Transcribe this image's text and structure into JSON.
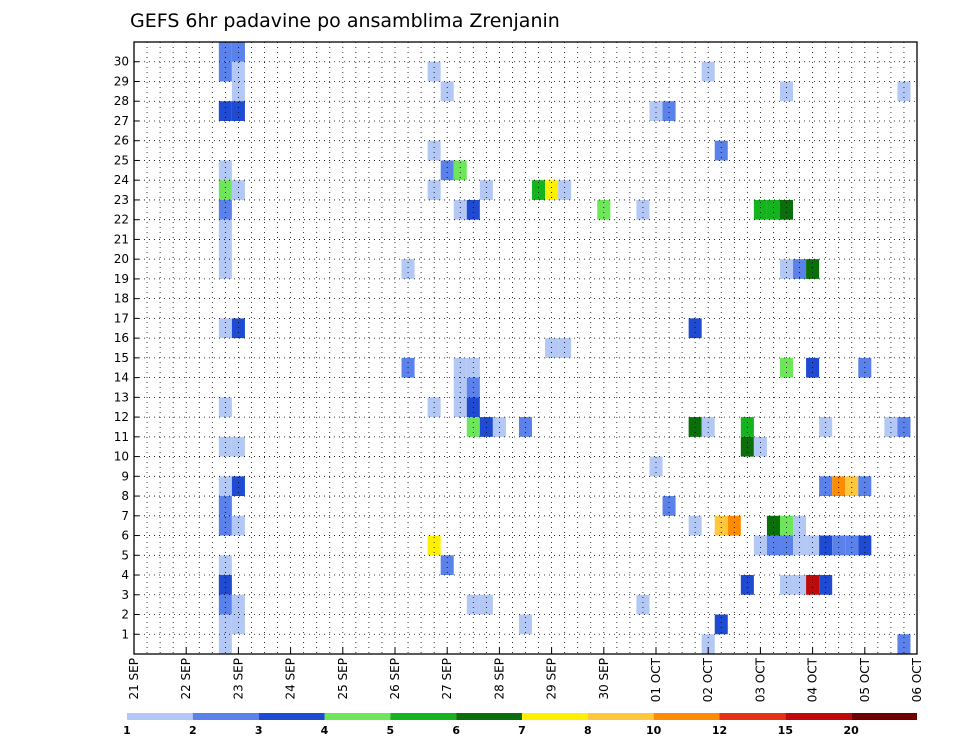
{
  "chart_data": {
    "type": "heatmap",
    "title": "GEFS 6hr padavine po ansamblima Zrenjanin",
    "xlabel": "",
    "ylabel": "",
    "x_tick_labels": [
      "21 SEP",
      "22 SEP",
      "23 SEP",
      "24 SEP",
      "25 SEP",
      "26 SEP",
      "27 SEP",
      "28 SEP",
      "29 SEP",
      "30 SEP",
      "01 OCT",
      "02 OCT",
      "03 OCT",
      "04 OCT",
      "05 OCT",
      "06 OCT"
    ],
    "x_range_steps": [
      0,
      60
    ],
    "x_step_hours": 6,
    "y_members": [
      1,
      30
    ],
    "grid": true,
    "legend": {
      "placement": "bottom",
      "levels": [
        "1",
        "2",
        "3",
        "4",
        "5",
        "6",
        "7",
        "8",
        "10",
        "12",
        "15",
        "20"
      ],
      "colors": [
        "#b4c8f5",
        "#5b82eb",
        "#1e4bd2",
        "#6ee65a",
        "#14b41e",
        "#0a6e0a",
        "#fff000",
        "#ffc83c",
        "#ff8c00",
        "#e63214",
        "#be0a0a",
        "#6e0000"
      ]
    },
    "cells": [
      {
        "step": 7,
        "member": 30,
        "value": 2.5
      },
      {
        "step": 8,
        "member": 30,
        "value": 2.5
      },
      {
        "step": 7,
        "member": 29,
        "value": 2.5
      },
      {
        "step": 8,
        "member": 29,
        "value": 1.5
      },
      {
        "step": 8,
        "member": 28,
        "value": 1.5
      },
      {
        "step": 7,
        "member": 27,
        "value": 3.5
      },
      {
        "step": 8,
        "member": 27,
        "value": 3.5
      },
      {
        "step": 7,
        "member": 24,
        "value": 1.5
      },
      {
        "step": 7,
        "member": 23,
        "value": 4.5
      },
      {
        "step": 8,
        "member": 23,
        "value": 1.5
      },
      {
        "step": 7,
        "member": 22,
        "value": 2.5
      },
      {
        "step": 7,
        "member": 21,
        "value": 1.5
      },
      {
        "step": 7,
        "member": 20,
        "value": 1.5
      },
      {
        "step": 7,
        "member": 19,
        "value": 1.5
      },
      {
        "step": 7,
        "member": 16,
        "value": 1.5
      },
      {
        "step": 8,
        "member": 16,
        "value": 3.5
      },
      {
        "step": 7,
        "member": 12,
        "value": 1.5
      },
      {
        "step": 7,
        "member": 10,
        "value": 1.5
      },
      {
        "step": 8,
        "member": 10,
        "value": 1.5
      },
      {
        "step": 7,
        "member": 8,
        "value": 1.5
      },
      {
        "step": 8,
        "member": 8,
        "value": 3.5
      },
      {
        "step": 7,
        "member": 7,
        "value": 2.5
      },
      {
        "step": 7,
        "member": 6,
        "value": 2.5
      },
      {
        "step": 8,
        "member": 6,
        "value": 1.5
      },
      {
        "step": 7,
        "member": 4,
        "value": 1.5
      },
      {
        "step": 7,
        "member": 3,
        "value": 3.5
      },
      {
        "step": 7,
        "member": 2,
        "value": 2.5
      },
      {
        "step": 8,
        "member": 2,
        "value": 1.5
      },
      {
        "step": 7,
        "member": 1,
        "value": 1.5
      },
      {
        "step": 8,
        "member": 1,
        "value": 1.5
      },
      {
        "step": 7,
        "member": 0,
        "value": 1.5
      },
      {
        "step": 23,
        "member": 29,
        "value": 1.5
      },
      {
        "step": 24,
        "member": 28,
        "value": 1.5
      },
      {
        "step": 23,
        "member": 25,
        "value": 1.5
      },
      {
        "step": 24,
        "member": 24,
        "value": 2.5
      },
      {
        "step": 25,
        "member": 24,
        "value": 4.5
      },
      {
        "step": 23,
        "member": 23,
        "value": 1.5
      },
      {
        "step": 27,
        "member": 23,
        "value": 1.5
      },
      {
        "step": 25,
        "member": 22,
        "value": 1.5
      },
      {
        "step": 26,
        "member": 22,
        "value": 3.5
      },
      {
        "step": 21,
        "member": 19,
        "value": 1.5
      },
      {
        "step": 21,
        "member": 14,
        "value": 2.5
      },
      {
        "step": 25,
        "member": 14,
        "value": 1.5
      },
      {
        "step": 26,
        "member": 14,
        "value": 1.5
      },
      {
        "step": 25,
        "member": 13,
        "value": 1.5
      },
      {
        "step": 26,
        "member": 13,
        "value": 2.5
      },
      {
        "step": 23,
        "member": 12,
        "value": 1.5
      },
      {
        "step": 25,
        "member": 12,
        "value": 1.5
      },
      {
        "step": 26,
        "member": 12,
        "value": 3.5
      },
      {
        "step": 26,
        "member": 11,
        "value": 4.5
      },
      {
        "step": 27,
        "member": 11,
        "value": 3.5
      },
      {
        "step": 28,
        "member": 11,
        "value": 1.5
      },
      {
        "step": 30,
        "member": 11,
        "value": 2.5
      },
      {
        "step": 23,
        "member": 5,
        "value": 7.5
      },
      {
        "step": 24,
        "member": 4,
        "value": 2.5
      },
      {
        "step": 26,
        "member": 2,
        "value": 1.5
      },
      {
        "step": 27,
        "member": 2,
        "value": 1.5
      },
      {
        "step": 30,
        "member": 1,
        "value": 1.5
      },
      {
        "step": 31,
        "member": 23,
        "value": 5.5
      },
      {
        "step": 32,
        "member": 23,
        "value": 7.5
      },
      {
        "step": 33,
        "member": 23,
        "value": 1.5
      },
      {
        "step": 36,
        "member": 22,
        "value": 4.5
      },
      {
        "step": 39,
        "member": 22,
        "value": 1.5
      },
      {
        "step": 32,
        "member": 15,
        "value": 1.5
      },
      {
        "step": 33,
        "member": 15,
        "value": 1.5
      },
      {
        "step": 39,
        "member": 2,
        "value": 1.5
      },
      {
        "step": 44,
        "member": 29,
        "value": 1.5
      },
      {
        "step": 40,
        "member": 27,
        "value": 1.5
      },
      {
        "step": 41,
        "member": 27,
        "value": 2.5
      },
      {
        "step": 45,
        "member": 25,
        "value": 2.5
      },
      {
        "step": 43,
        "member": 16,
        "value": 3.5
      },
      {
        "step": 43,
        "member": 11,
        "value": 6.5
      },
      {
        "step": 44,
        "member": 11,
        "value": 1.5
      },
      {
        "step": 40,
        "member": 9,
        "value": 1.5
      },
      {
        "step": 41,
        "member": 7,
        "value": 2.5
      },
      {
        "step": 43,
        "member": 6,
        "value": 1.5
      },
      {
        "step": 45,
        "member": 6,
        "value": 9
      },
      {
        "step": 46,
        "member": 6,
        "value": 11
      },
      {
        "step": 45,
        "member": 1,
        "value": 3.5
      },
      {
        "step": 44,
        "member": 0,
        "value": 1.5
      },
      {
        "step": 47,
        "member": 11,
        "value": 5.5
      },
      {
        "step": 47,
        "member": 10,
        "value": 6.5
      },
      {
        "step": 48,
        "member": 10,
        "value": 1.5
      },
      {
        "step": 47,
        "member": 3,
        "value": 3.5
      },
      {
        "step": 48,
        "member": 22,
        "value": 5.5
      },
      {
        "step": 49,
        "member": 22,
        "value": 5.5
      },
      {
        "step": 50,
        "member": 22,
        "value": 6.5
      },
      {
        "step": 50,
        "member": 28,
        "value": 1.5
      },
      {
        "step": 50,
        "member": 19,
        "value": 1.5
      },
      {
        "step": 51,
        "member": 19,
        "value": 2.5
      },
      {
        "step": 52,
        "member": 19,
        "value": 6.5
      },
      {
        "step": 50,
        "member": 14,
        "value": 4.5
      },
      {
        "step": 52,
        "member": 14,
        "value": 3.5
      },
      {
        "step": 49,
        "member": 6,
        "value": 6.5
      },
      {
        "step": 50,
        "member": 6,
        "value": 4.5
      },
      {
        "step": 51,
        "member": 6,
        "value": 1.5
      },
      {
        "step": 48,
        "member": 5,
        "value": 1.5
      },
      {
        "step": 49,
        "member": 5,
        "value": 2.5
      },
      {
        "step": 50,
        "member": 5,
        "value": 2.5
      },
      {
        "step": 51,
        "member": 5,
        "value": 1.5
      },
      {
        "step": 52,
        "member": 5,
        "value": 1.5
      },
      {
        "step": 53,
        "member": 5,
        "value": 3.5
      },
      {
        "step": 54,
        "member": 5,
        "value": 2.5
      },
      {
        "step": 55,
        "member": 5,
        "value": 2.5
      },
      {
        "step": 56,
        "member": 5,
        "value": 3.5
      },
      {
        "step": 50,
        "member": 3,
        "value": 1.5
      },
      {
        "step": 51,
        "member": 3,
        "value": 1.5
      },
      {
        "step": 52,
        "member": 3,
        "value": 17
      },
      {
        "step": 53,
        "member": 3,
        "value": 3.5
      },
      {
        "step": 53,
        "member": 11,
        "value": 1.5
      },
      {
        "step": 53,
        "member": 8,
        "value": 2.5
      },
      {
        "step": 54,
        "member": 8,
        "value": 11
      },
      {
        "step": 55,
        "member": 8,
        "value": 9
      },
      {
        "step": 56,
        "member": 8,
        "value": 2.5
      },
      {
        "step": 56,
        "member": 14,
        "value": 2.5
      },
      {
        "step": 58,
        "member": 11,
        "value": 1.5
      },
      {
        "step": 59,
        "member": 11,
        "value": 2.5
      },
      {
        "step": 59,
        "member": 28,
        "value": 1.5
      },
      {
        "step": 59,
        "member": 0,
        "value": 2.5
      }
    ]
  }
}
